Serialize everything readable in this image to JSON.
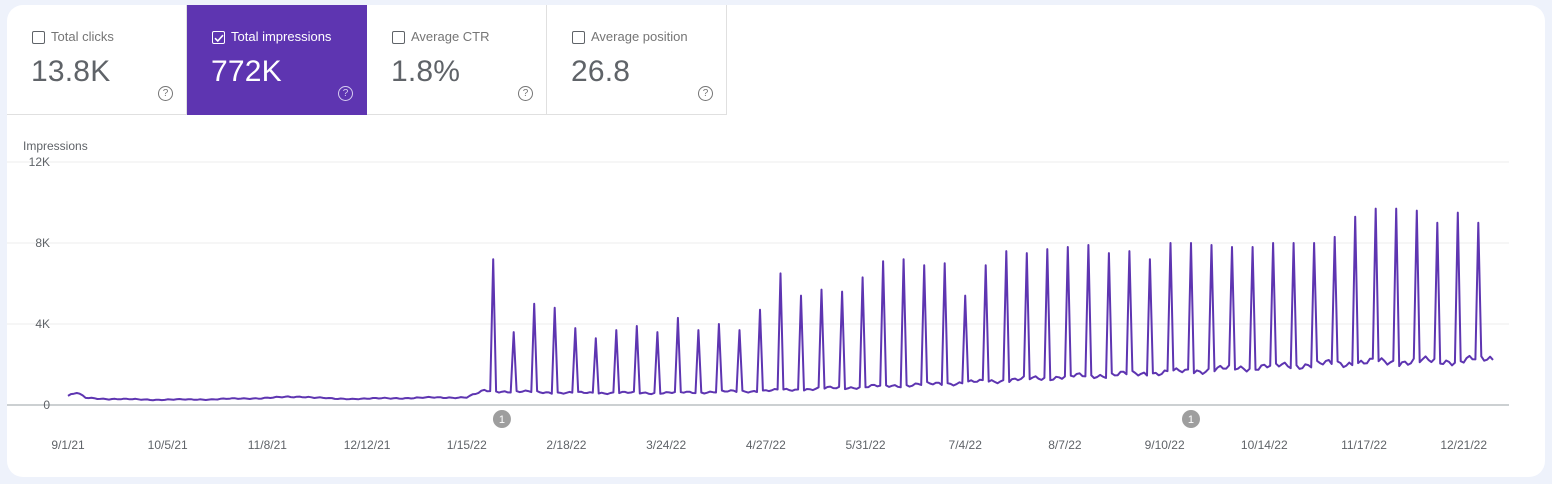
{
  "metrics": [
    {
      "label": "Total clicks",
      "value": "13.8K",
      "selected": false
    },
    {
      "label": "Total impressions",
      "value": "772K",
      "selected": true
    },
    {
      "label": "Average CTR",
      "value": "1.8%",
      "selected": false
    },
    {
      "label": "Average position",
      "value": "26.8",
      "selected": false
    }
  ],
  "help_glyph": "?",
  "colors": {
    "accent": "#5e35b1",
    "line": "#5e35b1",
    "annotation": "#9e9e9e"
  },
  "chart_data": {
    "type": "line",
    "ylabel": "Impressions",
    "ylim": [
      0,
      12000
    ],
    "yticks": [
      0,
      4000,
      8000,
      12000
    ],
    "ytick_labels": [
      "0",
      "4K",
      "8K",
      "12K"
    ],
    "xticks": [
      "9/1/21",
      "10/5/21",
      "11/8/21",
      "12/12/21",
      "1/15/22",
      "2/18/22",
      "3/24/22",
      "4/27/22",
      "5/31/22",
      "7/4/22",
      "8/7/22",
      "9/10/22",
      "10/14/22",
      "11/17/22",
      "12/21/22"
    ],
    "x_start": "2021-09-01",
    "x_end": "2022-12-31",
    "grid": true,
    "annotations": [
      {
        "date": "2022-01-27",
        "label": "1"
      },
      {
        "date": "2022-09-19",
        "label": "1"
      }
    ],
    "baseline": [
      [
        "2021-09-01",
        450
      ],
      [
        "2021-09-04",
        600
      ],
      [
        "2021-09-07",
        350
      ],
      [
        "2021-09-15",
        300
      ],
      [
        "2021-10-01",
        260
      ],
      [
        "2021-10-20",
        280
      ],
      [
        "2021-11-08",
        350
      ],
      [
        "2021-11-20",
        420
      ],
      [
        "2021-12-01",
        300
      ],
      [
        "2021-12-20",
        330
      ],
      [
        "2022-01-01",
        360
      ],
      [
        "2022-01-15",
        380
      ],
      [
        "2022-01-21",
        700
      ],
      [
        "2022-02-18",
        600
      ],
      [
        "2022-03-24",
        600
      ],
      [
        "2022-04-27",
        700
      ],
      [
        "2022-05-31",
        900
      ],
      [
        "2022-07-04",
        1100
      ],
      [
        "2022-08-07",
        1400
      ],
      [
        "2022-09-10",
        1600
      ],
      [
        "2022-10-14",
        1900
      ],
      [
        "2022-11-17",
        2100
      ],
      [
        "2022-12-21",
        2200
      ],
      [
        "2022-12-31",
        2300
      ]
    ],
    "spikes": [
      [
        "2022-01-24",
        7200
      ],
      [
        "2022-01-31",
        3600
      ],
      [
        "2022-02-07",
        5000
      ],
      [
        "2022-02-14",
        4800
      ],
      [
        "2022-02-21",
        3800
      ],
      [
        "2022-02-28",
        3300
      ],
      [
        "2022-03-07",
        3700
      ],
      [
        "2022-03-14",
        3900
      ],
      [
        "2022-03-21",
        3600
      ],
      [
        "2022-03-28",
        4300
      ],
      [
        "2022-04-04",
        3700
      ],
      [
        "2022-04-11",
        4000
      ],
      [
        "2022-04-18",
        3700
      ],
      [
        "2022-04-25",
        4700
      ],
      [
        "2022-05-02",
        6500
      ],
      [
        "2022-05-09",
        5400
      ],
      [
        "2022-05-16",
        5700
      ],
      [
        "2022-05-23",
        5600
      ],
      [
        "2022-05-30",
        6300
      ],
      [
        "2022-06-06",
        7100
      ],
      [
        "2022-06-13",
        7200
      ],
      [
        "2022-06-20",
        6900
      ],
      [
        "2022-06-27",
        7000
      ],
      [
        "2022-07-04",
        5400
      ],
      [
        "2022-07-11",
        6900
      ],
      [
        "2022-07-18",
        7600
      ],
      [
        "2022-07-25",
        7500
      ],
      [
        "2022-08-01",
        7700
      ],
      [
        "2022-08-08",
        7800
      ],
      [
        "2022-08-15",
        7900
      ],
      [
        "2022-08-22",
        7500
      ],
      [
        "2022-08-29",
        7600
      ],
      [
        "2022-09-05",
        7200
      ],
      [
        "2022-09-12",
        8000
      ],
      [
        "2022-09-19",
        8000
      ],
      [
        "2022-09-26",
        7900
      ],
      [
        "2022-10-03",
        7800
      ],
      [
        "2022-10-10",
        7800
      ],
      [
        "2022-10-17",
        8000
      ],
      [
        "2022-10-24",
        8000
      ],
      [
        "2022-10-31",
        8000
      ],
      [
        "2022-11-07",
        8300
      ],
      [
        "2022-11-14",
        9300
      ],
      [
        "2022-11-21",
        9700
      ],
      [
        "2022-11-28",
        9700
      ],
      [
        "2022-12-05",
        9600
      ],
      [
        "2022-12-12",
        9000
      ],
      [
        "2022-12-19",
        9500
      ],
      [
        "2022-12-26",
        9000
      ]
    ]
  }
}
